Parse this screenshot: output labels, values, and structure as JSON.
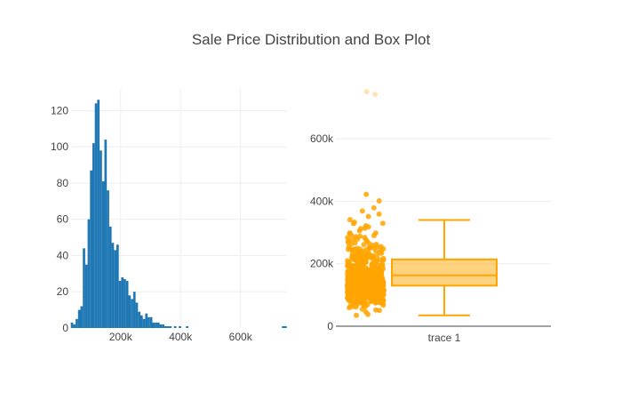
{
  "title": "Sale Price Distribution and Box Plot",
  "colors": {
    "histogram": "#1f77b4",
    "box": "#ffa500",
    "box_fill": "rgba(255,165,0,0.5)",
    "grid": "#eeeeee",
    "axis_text": "#444444",
    "title": "#444444"
  },
  "chart_data": [
    {
      "type": "bar",
      "subtype": "histogram",
      "x": [
        38000,
        46000,
        54000,
        62000,
        70000,
        78000,
        86000,
        94000,
        102000,
        110000,
        118000,
        126000,
        134000,
        142000,
        150000,
        158000,
        166000,
        174000,
        182000,
        190000,
        198000,
        206000,
        214000,
        222000,
        230000,
        238000,
        246000,
        254000,
        262000,
        270000,
        278000,
        286000,
        294000,
        302000,
        310000,
        318000,
        326000,
        334000,
        342000,
        350000,
        358000,
        366000,
        374000,
        382000,
        390000,
        398000,
        406000,
        414000,
        422000,
        430000,
        438000,
        446000,
        454000,
        462000,
        470000,
        478000,
        486000,
        494000,
        502000,
        510000,
        518000,
        526000,
        534000,
        542000,
        550000,
        558000,
        566000,
        574000,
        582000,
        590000,
        598000,
        606000,
        614000,
        622000,
        630000,
        638000,
        646000,
        654000,
        662000,
        670000,
        678000,
        686000,
        694000,
        702000,
        710000,
        718000,
        726000,
        734000,
        742000,
        750000
      ],
      "values": [
        3,
        2,
        5,
        10,
        12,
        44,
        35,
        60,
        87,
        102,
        124,
        126,
        98,
        81,
        104,
        76,
        56,
        47,
        43,
        46,
        26,
        28,
        27,
        26,
        18,
        16,
        20,
        14,
        9,
        7,
        5,
        8,
        6,
        6,
        3,
        3,
        3,
        2,
        2,
        1,
        1,
        1,
        0,
        1,
        0,
        1,
        0,
        0,
        1,
        0,
        0,
        0,
        0,
        0,
        0,
        0,
        0,
        0,
        0,
        0,
        0,
        0,
        0,
        0,
        0,
        0,
        0,
        0,
        0,
        0,
        0,
        0,
        0,
        0,
        0,
        0,
        0,
        0,
        0,
        0,
        0,
        0,
        0,
        0,
        0,
        0,
        0,
        0,
        1,
        1
      ],
      "bin_width": 8000,
      "xlim": [
        34900,
        755000
      ],
      "ylim": [
        0,
        132
      ],
      "xticks": [
        "200k",
        "400k",
        "600k"
      ],
      "yticks": [
        "0",
        "20",
        "40",
        "60",
        "80",
        "100",
        "120"
      ],
      "grid": true
    },
    {
      "type": "box",
      "category": "trace 1",
      "q1": 130000,
      "median": 163000,
      "q3": 214000,
      "whisker_low": 34900,
      "whisker_high": 340000,
      "points": "all",
      "ylim": [
        0,
        760000
      ],
      "yticks": [
        "0",
        "200k",
        "400k",
        "600k"
      ],
      "grid": true
    }
  ]
}
